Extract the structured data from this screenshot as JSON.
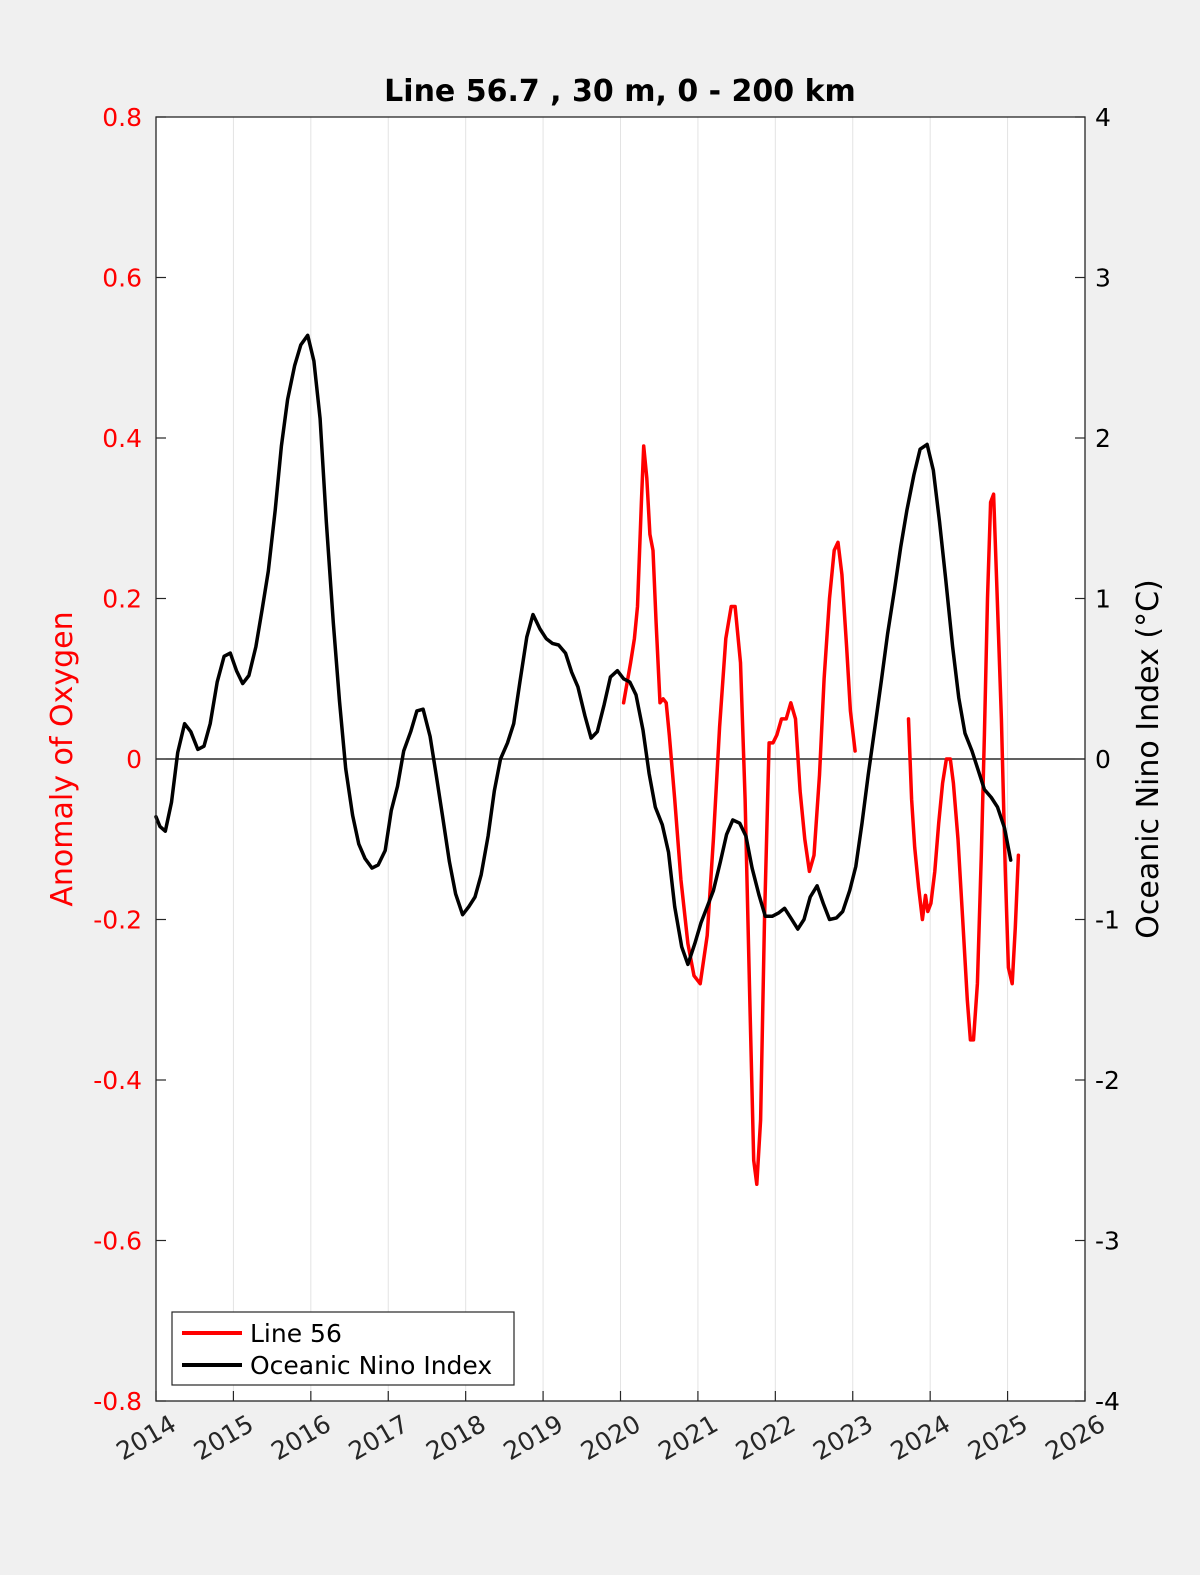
{
  "chart_data": {
    "type": "line",
    "title": "Line 56.7 , 30 m, 0 - 200 km",
    "x_axis": {
      "range": [
        2014,
        2026
      ],
      "ticks": [
        2014,
        2015,
        2016,
        2017,
        2018,
        2019,
        2020,
        2021,
        2022,
        2023,
        2024,
        2025,
        2026
      ],
      "tick_labels": [
        "2014",
        "2015",
        "2016",
        "2017",
        "2018",
        "2019",
        "2020",
        "2021",
        "2022",
        "2023",
        "2024",
        "2025",
        "2026"
      ],
      "grid": true
    },
    "y_left": {
      "label": "Anomaly of Oxygen",
      "range": [
        -0.8,
        0.8
      ],
      "ticks": [
        -0.8,
        -0.6,
        -0.4,
        -0.2,
        0,
        0.2,
        0.4,
        0.6,
        0.8
      ],
      "tick_labels": [
        "-0.8",
        "-0.6",
        "-0.4",
        "-0.2",
        "0",
        "0.2",
        "0.4",
        "0.6",
        "0.8"
      ],
      "color": "#ff0000"
    },
    "y_right": {
      "label": "Oceanic Nino Index (°C)",
      "range": [
        -4,
        4
      ],
      "ticks": [
        -4,
        -3,
        -2,
        -1,
        0,
        1,
        2,
        3,
        4
      ],
      "tick_labels": [
        "-4",
        "-3",
        "-2",
        "-1",
        "0",
        "1",
        "2",
        "3",
        "4"
      ],
      "color": "#000000"
    },
    "zero_line": true,
    "legend": {
      "placement": "bottom-left"
    },
    "series": [
      {
        "name": "Line 56",
        "axis": "left",
        "color": "#ff0000",
        "segments": [
          [
            [
              2020.04,
              0.07
            ],
            [
              2020.13,
              0.12
            ],
            [
              2020.18,
              0.15
            ],
            [
              2020.22,
              0.19
            ],
            [
              2020.27,
              0.32
            ],
            [
              2020.3,
              0.39
            ],
            [
              2020.34,
              0.35
            ],
            [
              2020.38,
              0.28
            ],
            [
              2020.42,
              0.26
            ],
            [
              2020.46,
              0.17
            ],
            [
              2020.51,
              0.07
            ],
            [
              2020.55,
              0.075
            ],
            [
              2020.59,
              0.07
            ],
            [
              2020.63,
              0.03
            ],
            [
              2020.7,
              -0.05
            ],
            [
              2020.78,
              -0.15
            ],
            [
              2020.87,
              -0.23
            ],
            [
              2020.95,
              -0.27
            ],
            [
              2021.03,
              -0.28
            ],
            [
              2021.12,
              -0.22
            ],
            [
              2021.2,
              -0.1
            ],
            [
              2021.28,
              0.04
            ],
            [
              2021.36,
              0.15
            ],
            [
              2021.43,
              0.19
            ],
            [
              2021.48,
              0.19
            ],
            [
              2021.55,
              0.12
            ],
            [
              2021.61,
              -0.05
            ],
            [
              2021.67,
              -0.3
            ],
            [
              2021.72,
              -0.5
            ],
            [
              2021.76,
              -0.53
            ],
            [
              2021.81,
              -0.45
            ],
            [
              2021.86,
              -0.2
            ],
            [
              2021.92,
              0.02
            ],
            [
              2021.97,
              0.02
            ],
            [
              2022.02,
              0.03
            ],
            [
              2022.08,
              0.05
            ],
            [
              2022.14,
              0.05
            ],
            [
              2022.2,
              0.07
            ],
            [
              2022.26,
              0.05
            ],
            [
              2022.32,
              -0.04
            ],
            [
              2022.38,
              -0.1
            ],
            [
              2022.44,
              -0.14
            ],
            [
              2022.5,
              -0.12
            ],
            [
              2022.57,
              -0.02
            ],
            [
              2022.63,
              0.1
            ],
            [
              2022.7,
              0.2
            ],
            [
              2022.76,
              0.26
            ],
            [
              2022.81,
              0.27
            ],
            [
              2022.86,
              0.23
            ],
            [
              2022.92,
              0.14
            ],
            [
              2022.97,
              0.06
            ],
            [
              2023.03,
              0.01
            ]
          ],
          [
            [
              2023.72,
              0.05
            ],
            [
              2023.76,
              -0.05
            ],
            [
              2023.8,
              -0.11
            ],
            [
              2023.85,
              -0.16
            ],
            [
              2023.9,
              -0.2
            ],
            [
              2023.94,
              -0.17
            ],
            [
              2023.97,
              -0.19
            ],
            [
              2024.01,
              -0.18
            ],
            [
              2024.06,
              -0.14
            ],
            [
              2024.11,
              -0.08
            ],
            [
              2024.16,
              -0.03
            ],
            [
              2024.21,
              0.0
            ],
            [
              2024.26,
              0.0
            ],
            [
              2024.3,
              -0.03
            ],
            [
              2024.36,
              -0.1
            ],
            [
              2024.42,
              -0.2
            ],
            [
              2024.48,
              -0.3
            ],
            [
              2024.52,
              -0.35
            ],
            [
              2024.56,
              -0.35
            ],
            [
              2024.61,
              -0.28
            ],
            [
              2024.66,
              -0.12
            ],
            [
              2024.7,
              0.03
            ],
            [
              2024.74,
              0.2
            ],
            [
              2024.78,
              0.32
            ],
            [
              2024.82,
              0.33
            ],
            [
              2024.86,
              0.22
            ],
            [
              2024.92,
              0.05
            ],
            [
              2024.97,
              -0.14
            ],
            [
              2025.01,
              -0.26
            ],
            [
              2025.06,
              -0.28
            ],
            [
              2025.1,
              -0.21
            ],
            [
              2025.14,
              -0.12
            ]
          ]
        ]
      },
      {
        "name": "Oceanic Nino Index",
        "axis": "right",
        "color": "#000000",
        "segments": [
          [
            [
              2014.0,
              -0.36
            ],
            [
              2014.05,
              -0.42
            ],
            [
              2014.12,
              -0.45
            ],
            [
              2014.2,
              -0.27
            ],
            [
              2014.28,
              0.04
            ],
            [
              2014.37,
              0.22
            ],
            [
              2014.45,
              0.17
            ],
            [
              2014.54,
              0.06
            ],
            [
              2014.62,
              0.08
            ],
            [
              2014.7,
              0.22
            ],
            [
              2014.79,
              0.48
            ],
            [
              2014.88,
              0.64
            ],
            [
              2014.96,
              0.66
            ],
            [
              2015.04,
              0.55
            ],
            [
              2015.12,
              0.47
            ],
            [
              2015.2,
              0.52
            ],
            [
              2015.29,
              0.7
            ],
            [
              2015.37,
              0.93
            ],
            [
              2015.45,
              1.17
            ],
            [
              2015.54,
              1.55
            ],
            [
              2015.62,
              1.95
            ],
            [
              2015.7,
              2.24
            ],
            [
              2015.79,
              2.45
            ],
            [
              2015.87,
              2.58
            ],
            [
              2015.96,
              2.64
            ],
            [
              2016.04,
              2.48
            ],
            [
              2016.12,
              2.12
            ],
            [
              2016.2,
              1.48
            ],
            [
              2016.29,
              0.85
            ],
            [
              2016.37,
              0.36
            ],
            [
              2016.45,
              -0.06
            ],
            [
              2016.54,
              -0.35
            ],
            [
              2016.62,
              -0.53
            ],
            [
              2016.7,
              -0.62
            ],
            [
              2016.79,
              -0.68
            ],
            [
              2016.87,
              -0.66
            ],
            [
              2016.96,
              -0.57
            ],
            [
              2017.04,
              -0.32
            ],
            [
              2017.12,
              -0.17
            ],
            [
              2017.2,
              0.05
            ],
            [
              2017.29,
              0.17
            ],
            [
              2017.37,
              0.3
            ],
            [
              2017.45,
              0.31
            ],
            [
              2017.54,
              0.14
            ],
            [
              2017.62,
              -0.1
            ],
            [
              2017.7,
              -0.35
            ],
            [
              2017.79,
              -0.64
            ],
            [
              2017.87,
              -0.84
            ],
            [
              2017.96,
              -0.97
            ],
            [
              2018.04,
              -0.92
            ],
            [
              2018.12,
              -0.86
            ],
            [
              2018.2,
              -0.72
            ],
            [
              2018.29,
              -0.48
            ],
            [
              2018.37,
              -0.2
            ],
            [
              2018.45,
              0.0
            ],
            [
              2018.54,
              0.1
            ],
            [
              2018.62,
              0.22
            ],
            [
              2018.7,
              0.48
            ],
            [
              2018.79,
              0.76
            ],
            [
              2018.87,
              0.9
            ],
            [
              2018.96,
              0.81
            ],
            [
              2019.04,
              0.75
            ],
            [
              2019.12,
              0.72
            ],
            [
              2019.2,
              0.71
            ],
            [
              2019.29,
              0.66
            ],
            [
              2019.37,
              0.54
            ],
            [
              2019.45,
              0.45
            ],
            [
              2019.54,
              0.27
            ],
            [
              2019.62,
              0.13
            ],
            [
              2019.7,
              0.17
            ],
            [
              2019.79,
              0.34
            ],
            [
              2019.87,
              0.51
            ],
            [
              2019.96,
              0.55
            ],
            [
              2020.04,
              0.5
            ],
            [
              2020.12,
              0.48
            ],
            [
              2020.2,
              0.4
            ],
            [
              2020.29,
              0.18
            ],
            [
              2020.37,
              -0.09
            ],
            [
              2020.45,
              -0.3
            ],
            [
              2020.54,
              -0.41
            ],
            [
              2020.62,
              -0.58
            ],
            [
              2020.7,
              -0.92
            ],
            [
              2020.79,
              -1.17
            ],
            [
              2020.87,
              -1.28
            ],
            [
              2020.96,
              -1.15
            ],
            [
              2021.04,
              -1.02
            ],
            [
              2021.12,
              -0.92
            ],
            [
              2021.2,
              -0.82
            ],
            [
              2021.29,
              -0.64
            ],
            [
              2021.37,
              -0.47
            ],
            [
              2021.45,
              -0.38
            ],
            [
              2021.54,
              -0.4
            ],
            [
              2021.62,
              -0.48
            ],
            [
              2021.7,
              -0.68
            ],
            [
              2021.79,
              -0.85
            ],
            [
              2021.87,
              -0.98
            ],
            [
              2021.96,
              -0.98
            ],
            [
              2022.04,
              -0.96
            ],
            [
              2022.12,
              -0.93
            ],
            [
              2022.2,
              -0.99
            ],
            [
              2022.29,
              -1.06
            ],
            [
              2022.37,
              -1.0
            ],
            [
              2022.45,
              -0.86
            ],
            [
              2022.54,
              -0.79
            ],
            [
              2022.62,
              -0.9
            ],
            [
              2022.7,
              -1.0
            ],
            [
              2022.79,
              -0.99
            ],
            [
              2022.87,
              -0.95
            ],
            [
              2022.96,
              -0.82
            ],
            [
              2023.04,
              -0.67
            ],
            [
              2023.12,
              -0.4
            ],
            [
              2023.2,
              -0.1
            ],
            [
              2023.29,
              0.21
            ],
            [
              2023.37,
              0.49
            ],
            [
              2023.45,
              0.78
            ],
            [
              2023.54,
              1.06
            ],
            [
              2023.62,
              1.32
            ],
            [
              2023.7,
              1.55
            ],
            [
              2023.79,
              1.77
            ],
            [
              2023.87,
              1.93
            ],
            [
              2023.96,
              1.96
            ],
            [
              2024.04,
              1.8
            ],
            [
              2024.12,
              1.48
            ],
            [
              2024.2,
              1.12
            ],
            [
              2024.29,
              0.7
            ],
            [
              2024.37,
              0.38
            ],
            [
              2024.45,
              0.16
            ],
            [
              2024.54,
              0.05
            ],
            [
              2024.62,
              -0.07
            ],
            [
              2024.7,
              -0.19
            ],
            [
              2024.79,
              -0.24
            ],
            [
              2024.87,
              -0.3
            ],
            [
              2024.96,
              -0.43
            ],
            [
              2025.04,
              -0.63
            ]
          ]
        ]
      }
    ]
  }
}
